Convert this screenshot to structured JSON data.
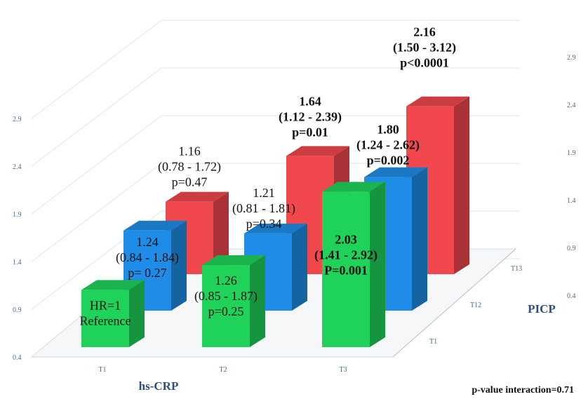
{
  "chart_data": {
    "type": "bar",
    "title": "",
    "x_axis_label": "hs-CRP",
    "depth_axis_label": "PICP",
    "x_categories": [
      "T1",
      "T2",
      "T3"
    ],
    "depth_categories": [
      "T1",
      "T12",
      "T13"
    ],
    "y_ticks_left": [
      "0.4",
      "0.9",
      "1.4",
      "1.9",
      "2.4",
      "2.9"
    ],
    "y_ticks_right": [
      "0.4",
      "0.9",
      "1.4",
      "1.9",
      "2.4",
      "2.9"
    ],
    "ylim": [
      0.4,
      2.9
    ],
    "series": [
      {
        "depth": "T1",
        "color": "#1fd35a",
        "bars": [
          {
            "x": "T1",
            "value": 1.0,
            "label_lines": [
              "HR=1",
              "Reference"
            ],
            "bold": false
          },
          {
            "x": "T2",
            "value": 1.26,
            "label_lines": [
              "1.26",
              "(0.85 - 1.87)",
              "p=0.25"
            ],
            "bold": false
          },
          {
            "x": "T3",
            "value": 2.03,
            "label_lines": [
              "2.03",
              "(1.41 - 2.92)",
              "P=0.001"
            ],
            "bold": true
          }
        ]
      },
      {
        "depth": "T12",
        "color": "#1f8de8",
        "bars": [
          {
            "x": "T1",
            "value": 1.24,
            "label_lines": [
              "1.24",
              "(0.84 - 1.84)",
              "p= 0.27"
            ],
            "bold": false
          },
          {
            "x": "T2",
            "value": 1.21,
            "label_lines": [
              "1.21",
              "(0.81 - 1.81)",
              "p=0.34"
            ],
            "bold": false
          },
          {
            "x": "T3",
            "value": 1.8,
            "label_lines": [
              "1.80",
              "(1.24 - 2.62)",
              "p=0.002"
            ],
            "bold": true
          }
        ]
      },
      {
        "depth": "T13",
        "color": "#f0484c",
        "bars": [
          {
            "x": "T1",
            "value": 1.16,
            "label_lines": [
              "1.16",
              "(0.78 - 1.72)",
              "p=0.47"
            ],
            "bold": false
          },
          {
            "x": "T2",
            "value": 1.64,
            "label_lines": [
              "1.64",
              "(1.12 - 2.39)",
              "p=0.01"
            ],
            "bold": true
          },
          {
            "x": "T3",
            "value": 2.16,
            "label_lines": [
              "2.16",
              "(1.50 - 3.12)",
              "p<0.0001"
            ],
            "bold": true
          }
        ]
      }
    ],
    "footnote": "p-value interaction=0.71"
  }
}
